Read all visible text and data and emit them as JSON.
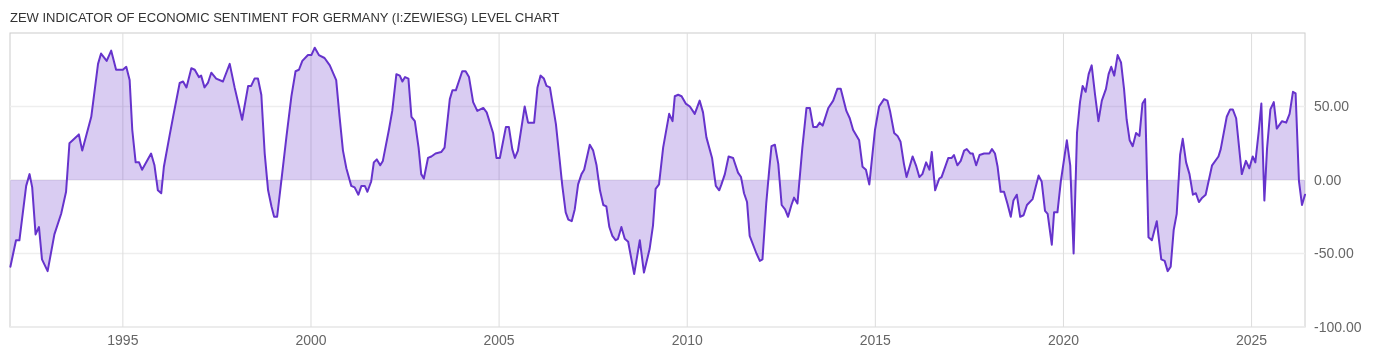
{
  "chart_data": {
    "type": "area",
    "title": "ZEW INDICATOR OF ECONOMIC SENTIMENT FOR GERMANY (I:ZEWIESG) LEVEL CHART",
    "xlim": [
      1992,
      2026.42
    ],
    "xticks": [
      1995,
      2000,
      2005,
      2010,
      2015,
      2020,
      2025
    ],
    "ylim": [
      -100,
      100
    ],
    "yticks": [
      {
        "value": -100,
        "label": "-100.00"
      },
      {
        "value": -50,
        "label": "-50.00"
      },
      {
        "value": 0,
        "label": "0.00"
      },
      {
        "value": 50,
        "label": "50.00"
      }
    ],
    "grid": true,
    "series": [
      {
        "color": "#6633cc",
        "x": [
          1992.01,
          1992.16,
          1992.25,
          1992.43,
          1992.52,
          1992.59,
          1992.68,
          1992.77,
          1992.85,
          1993.0,
          1993.18,
          1993.36,
          1993.49,
          1993.58,
          1993.83,
          1993.92,
          1994.16,
          1994.34,
          1994.42,
          1994.57,
          1994.69,
          1994.82,
          1995.0,
          1995.09,
          1995.18,
          1995.25,
          1995.34,
          1995.43,
          1995.51,
          1995.75,
          1995.84,
          1995.93,
          1996.02,
          1996.09,
          1996.24,
          1996.35,
          1996.51,
          1996.6,
          1996.69,
          1996.82,
          1996.91,
          1997.02,
          1997.08,
          1997.17,
          1997.26,
          1997.35,
          1997.48,
          1997.66,
          1997.84,
          1997.97,
          1998.17,
          1998.33,
          1998.41,
          1998.5,
          1998.59,
          1998.68,
          1998.77,
          1998.86,
          1998.95,
          1999.02,
          1999.1,
          1999.21,
          1999.35,
          1999.48,
          1999.59,
          1999.68,
          1999.77,
          1999.92,
          2000.01,
          2000.1,
          2000.21,
          2000.36,
          2000.5,
          2000.67,
          2000.76,
          2000.85,
          2000.94,
          2001.07,
          2001.16,
          2001.26,
          2001.34,
          2001.43,
          2001.5,
          2001.6,
          2001.67,
          2001.75,
          2001.84,
          2001.91,
          2002.07,
          2002.16,
          2002.27,
          2002.36,
          2002.43,
          2002.5,
          2002.59,
          2002.67,
          2002.76,
          2002.86,
          2002.93,
          2003.0,
          2003.11,
          2003.2,
          2003.31,
          2003.46,
          2003.55,
          2003.69,
          2003.76,
          2003.85,
          2004.02,
          2004.11,
          2004.2,
          2004.31,
          2004.42,
          2004.58,
          2004.67,
          2004.84,
          2004.93,
          2005.02,
          2005.18,
          2005.26,
          2005.35,
          2005.42,
          2005.5,
          2005.68,
          2005.77,
          2005.93,
          2006.02,
          2006.1,
          2006.19,
          2006.26,
          2006.35,
          2006.51,
          2006.6,
          2006.68,
          2006.77,
          2006.84,
          2006.93,
          2007.01,
          2007.1,
          2007.19,
          2007.26,
          2007.41,
          2007.5,
          2007.59,
          2007.68,
          2007.77,
          2007.85,
          2007.93,
          2008.01,
          2008.1,
          2008.16,
          2008.25,
          2008.34,
          2008.43,
          2008.59,
          2008.74,
          2008.85,
          2009.0,
          2009.09,
          2009.16,
          2009.25,
          2009.36,
          2009.52,
          2009.61,
          2009.67,
          2009.76,
          2009.85,
          2009.96,
          2010.07,
          2010.2,
          2010.33,
          2010.42,
          2010.51,
          2010.66,
          2010.76,
          2010.85,
          2010.91,
          2011.0,
          2011.1,
          2011.22,
          2011.35,
          2011.43,
          2011.51,
          2011.59,
          2011.66,
          2011.84,
          2011.93,
          2012.0,
          2012.1,
          2012.18,
          2012.24,
          2012.33,
          2012.42,
          2012.51,
          2012.6,
          2012.68,
          2012.77,
          2012.84,
          2012.93,
          2013.06,
          2013.17,
          2013.26,
          2013.35,
          2013.44,
          2013.52,
          2013.6,
          2013.75,
          2013.88,
          2013.99,
          2014.08,
          2014.23,
          2014.32,
          2014.41,
          2014.57,
          2014.66,
          2014.75,
          2014.84,
          2014.99,
          2015.1,
          2015.23,
          2015.32,
          2015.39,
          2015.5,
          2015.59,
          2015.67,
          2015.76,
          2015.83,
          2015.99,
          2016.08,
          2016.17,
          2016.25,
          2016.35,
          2016.44,
          2016.5,
          2016.59,
          2016.7,
          2016.76,
          2016.94,
          2017.03,
          2017.09,
          2017.18,
          2017.27,
          2017.36,
          2017.43,
          2017.53,
          2017.59,
          2017.68,
          2017.77,
          2017.89,
          2017.96,
          2018.03,
          2018.1,
          2018.18,
          2018.25,
          2018.33,
          2018.42,
          2018.51,
          2018.6,
          2018.67,
          2018.76,
          2018.85,
          2018.94,
          2019.03,
          2019.18,
          2019.26,
          2019.34,
          2019.42,
          2019.51,
          2019.58,
          2019.69,
          2019.75,
          2019.84,
          2019.93,
          2020.09,
          2020.18,
          2020.27,
          2020.36,
          2020.44,
          2020.51,
          2020.59,
          2020.67,
          2020.75,
          2020.84,
          2020.93,
          2021.02,
          2021.13,
          2021.2,
          2021.27,
          2021.35,
          2021.44,
          2021.53,
          2021.61,
          2021.68,
          2021.76,
          2021.84,
          2021.93,
          2022.02,
          2022.1,
          2022.17,
          2022.26,
          2022.35,
          2022.48,
          2022.6,
          2022.69,
          2022.77,
          2022.85,
          2022.93,
          2023.01,
          2023.1,
          2023.17,
          2023.26,
          2023.35,
          2023.44,
          2023.52,
          2023.6,
          2023.69,
          2023.78,
          2023.95,
          2024.12,
          2024.18,
          2024.34,
          2024.43,
          2024.5,
          2024.59,
          2024.74,
          2024.85,
          2024.94,
          2025.03,
          2025.1,
          2025.19,
          2025.26,
          2025.34,
          2025.41,
          2025.5,
          2025.59,
          2025.67,
          2025.81,
          2025.92,
          2026.01,
          2026.1,
          2026.17,
          2026.26,
          2026.34,
          2026.42
        ],
        "values": [
          -59,
          -41,
          -41,
          -4,
          4,
          -5,
          -37,
          -32,
          -54,
          -62,
          -37,
          -23,
          -8,
          25,
          31,
          20,
          43,
          79,
          86,
          81,
          88,
          75,
          75,
          77,
          68,
          34,
          12,
          12,
          7,
          18,
          10,
          -7,
          -9,
          9,
          30,
          45,
          66,
          67,
          63,
          76,
          75,
          70,
          71,
          63,
          66,
          73,
          69,
          67,
          79,
          63,
          41,
          64,
          64,
          69,
          69,
          58,
          18,
          -7,
          -18,
          -25,
          -25,
          -1,
          30,
          57,
          74,
          75,
          81,
          85,
          85,
          90,
          85,
          83,
          78,
          68,
          43,
          20,
          8,
          -4,
          -5,
          -10,
          -4,
          -4,
          -8,
          -1,
          12,
          14,
          10,
          13,
          34,
          47,
          72,
          71,
          67,
          70,
          69,
          43,
          40,
          22,
          4,
          1,
          15,
          16,
          18,
          19,
          22,
          55,
          61,
          61,
          74,
          74,
          70,
          53,
          47,
          49,
          46,
          32,
          15,
          15,
          36,
          36,
          21,
          15,
          20,
          50,
          39,
          39,
          63,
          71,
          69,
          64,
          63,
          38,
          16,
          -4,
          -22,
          -27,
          -28,
          -20,
          -3,
          4,
          7,
          24,
          20,
          10,
          -7,
          -17,
          -18,
          -32,
          -38,
          -41,
          -40,
          -32,
          -40,
          -42,
          -64,
          -41,
          -63,
          -47,
          -31,
          -6,
          -3,
          22,
          45,
          40,
          57,
          58,
          57,
          52,
          50,
          45,
          54,
          46,
          29,
          15,
          -4,
          -7,
          -3,
          4,
          16,
          15,
          5,
          2,
          -9,
          -15,
          -38,
          -50,
          -55,
          -54,
          -16,
          7,
          23,
          24,
          11,
          -17,
          -20,
          -25,
          -17,
          -12,
          -16,
          22,
          49,
          49,
          36,
          36,
          39,
          37,
          49,
          54,
          62,
          62,
          47,
          42,
          34,
          27,
          9,
          7,
          -3,
          34,
          50,
          55,
          54,
          47,
          32,
          30,
          26,
          11,
          2,
          16,
          10,
          2,
          4,
          12,
          7,
          19,
          -7,
          1,
          2,
          15,
          15,
          17,
          10,
          13,
          20,
          21,
          18,
          18,
          10,
          17,
          18,
          18,
          18,
          21,
          18,
          9,
          -8,
          -8,
          -16,
          -25,
          -14,
          -10,
          -25,
          -24,
          -17,
          -13,
          -5,
          3,
          -1,
          -21,
          -23,
          -44,
          -22,
          -22,
          -1,
          27,
          10,
          -50,
          32,
          53,
          64,
          60,
          72,
          78,
          58,
          40,
          54,
          62,
          72,
          77,
          71,
          85,
          80,
          62,
          41,
          27,
          23,
          32,
          30,
          52,
          55,
          -39,
          -41,
          -28,
          -54,
          -55,
          -62,
          -59,
          -34,
          -23,
          17,
          28,
          12,
          4,
          -10,
          -9,
          -15,
          -12,
          -10,
          10,
          16,
          21,
          43,
          48,
          48,
          42,
          4,
          13,
          8,
          16,
          12,
          33,
          52,
          -14,
          21,
          48,
          53,
          35,
          40,
          39,
          45,
          60,
          59,
          -1,
          -17,
          -10
        ]
      }
    ]
  }
}
